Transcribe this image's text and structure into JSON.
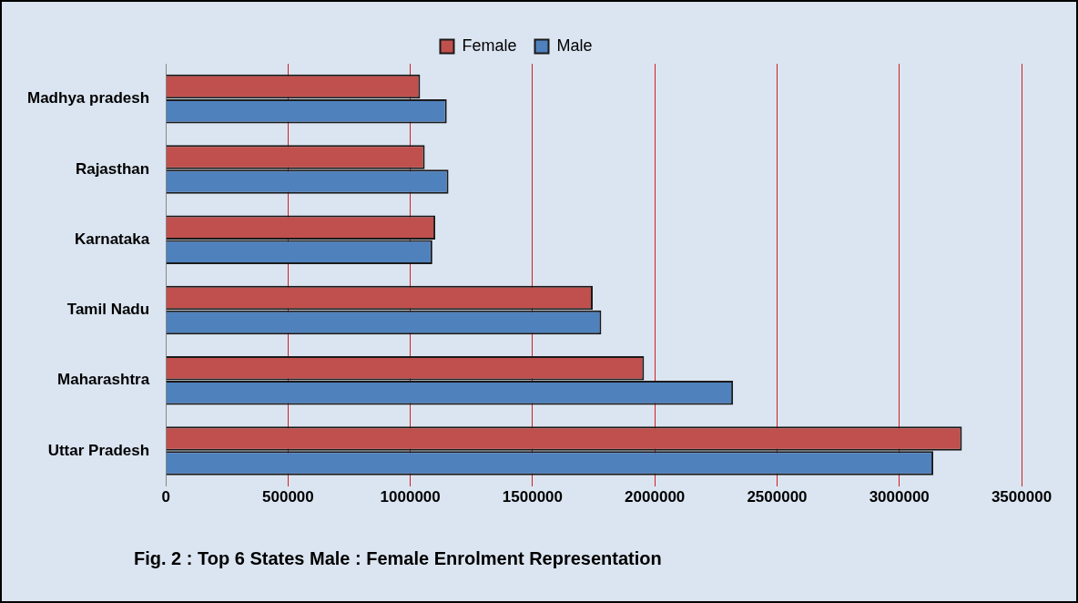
{
  "chart_data": {
    "type": "bar",
    "orientation": "horizontal",
    "categories": [
      "Madhya pradesh",
      "Rajasthan",
      "Karnataka",
      "Tamil Nadu",
      "Maharashtra",
      "Uttar Pradesh"
    ],
    "series": [
      {
        "name": "Female",
        "color": "#c0504d",
        "values": [
          1040000,
          1059000,
          1102000,
          1746000,
          1956000,
          3256000
        ]
      },
      {
        "name": "Male",
        "color": "#4f81bd",
        "values": [
          1149000,
          1156000,
          1090000,
          1781000,
          2320000,
          3139000
        ]
      }
    ],
    "xlim": [
      0,
      3500000
    ],
    "xticks": [
      0,
      500000,
      1000000,
      1500000,
      2000000,
      2500000,
      3000000,
      3500000
    ],
    "grid": "x",
    "legend": "top",
    "annotations": [
      "Fig. 2 : Top 6 States Male : Female Enrolment Representation"
    ]
  }
}
